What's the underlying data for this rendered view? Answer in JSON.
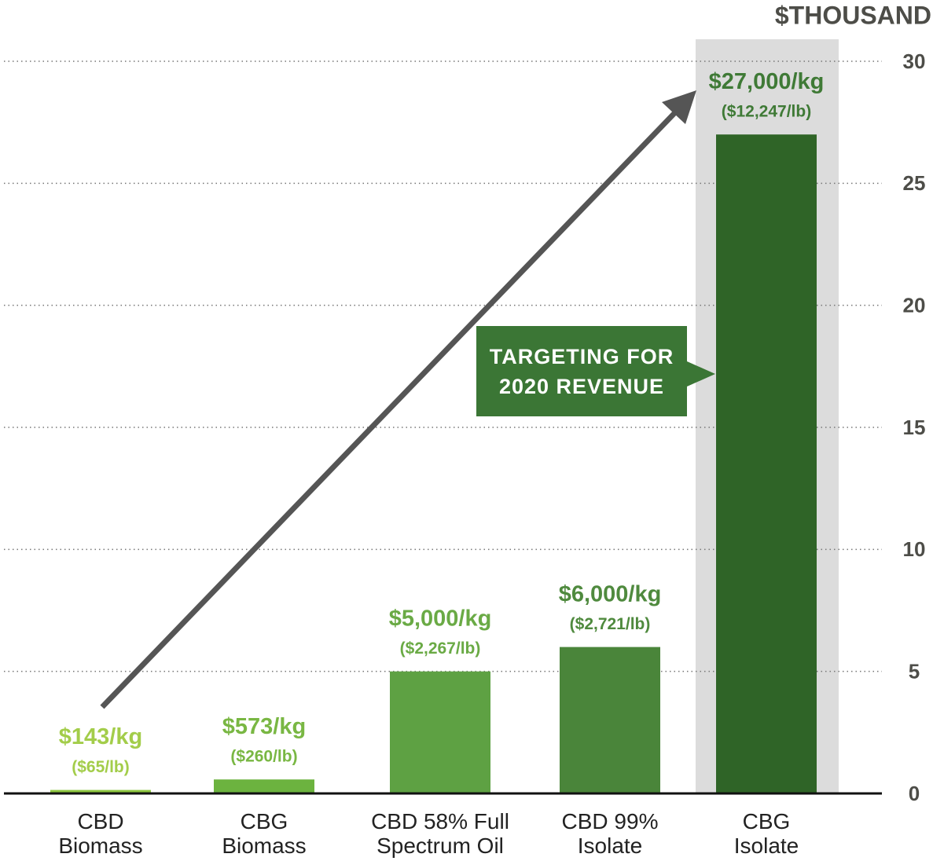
{
  "chart_data": {
    "type": "bar",
    "y_axis_label": "$THOUSAND",
    "categories": [
      "CBD\nBiomass",
      "CBG\nBiomass",
      "CBD 58% Full\nSpectrum Oil",
      "CBD 99%\nIsolate",
      "CBG\nIsolate"
    ],
    "values": [
      0.143,
      0.573,
      5,
      6,
      27
    ],
    "value_labels": [
      "$143/kg",
      "$573/kg",
      "$5,000/kg",
      "$6,000/kg",
      "$27,000/kg"
    ],
    "per_lb_labels": [
      "($65/lb)",
      "($260/lb)",
      "($2,267/lb)",
      "($2,721/lb)",
      "($12,247/lb)"
    ],
    "colors": [
      "#8dc63f",
      "#6cb33f",
      "#5ea143",
      "#4a853a",
      "#2f6427"
    ],
    "label_colors": [
      "#a3cd4a",
      "#79b743",
      "#6aaa45",
      "#4f8a3e",
      "#3f7a36"
    ],
    "ylim": [
      0,
      30
    ],
    "yticks": [
      0,
      5,
      10,
      15,
      20,
      25,
      30
    ],
    "grid": true,
    "annotation": "TARGETING FOR\n2020 REVENUE"
  }
}
